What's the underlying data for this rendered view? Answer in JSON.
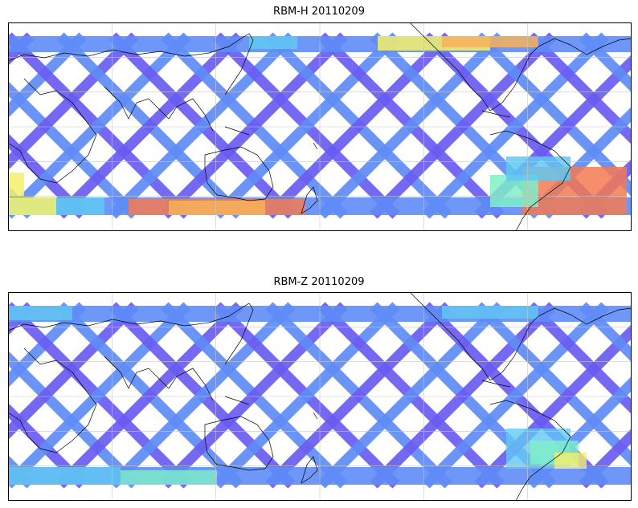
{
  "panels": [
    {
      "title": "RBM-H 20110209"
    },
    {
      "title": "RBM-Z 20110209"
    }
  ],
  "colors": {
    "low": "#6a5cf2",
    "low2": "#5f8cf7",
    "mid": "#62c8f2",
    "mid2": "#7ef0c8",
    "high": "#f4f06a",
    "higher": "#f7b25a",
    "highest": "#f47a52",
    "frame": "#000000",
    "grid": "#c8c8c8",
    "coast": "#000000"
  }
}
